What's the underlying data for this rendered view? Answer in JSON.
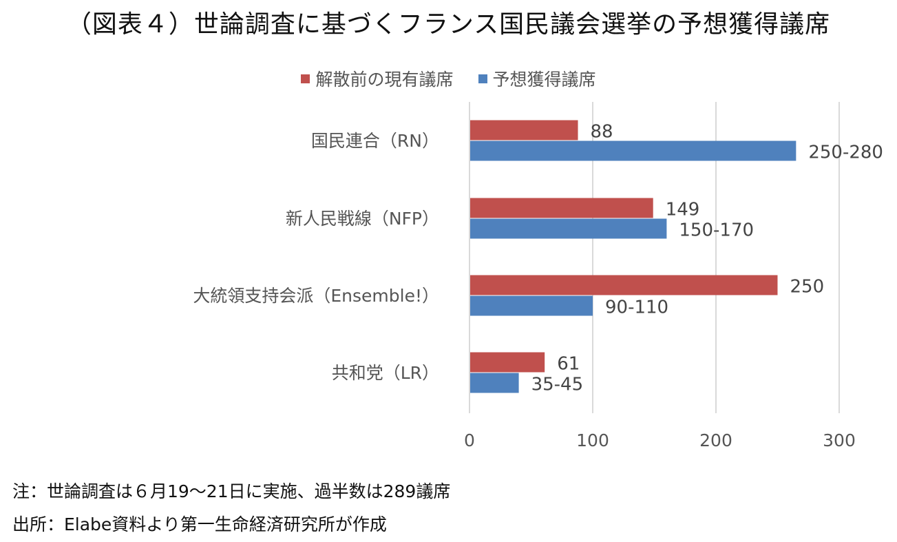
{
  "title": "（図表４）世論調査に基づくフランス国民議会選挙の予想獲得議席",
  "colors": {
    "series1": "#C0504D",
    "series2": "#4F81BD",
    "grid": "#D9D9D9"
  },
  "notes": [
    "注：世論調査は６月19～21日に実施、過半数は289議席",
    "出所：Elabe資料より第一生命経済研究所が作成"
  ],
  "chart_data": {
    "type": "bar",
    "orientation": "horizontal",
    "title": "（図表４）世論調査に基づくフランス国民議会選挙の予想獲得議席",
    "categories": [
      "国民連合（RN）",
      "新人民戦線（NFP）",
      "大統領支持会派（Ensemble!）",
      "共和党（LR）"
    ],
    "series": [
      {
        "name": "解散前の現有議席",
        "values": [
          88,
          149,
          250,
          61
        ],
        "labels": [
          "88",
          "149",
          "250",
          "61"
        ]
      },
      {
        "name": "予想獲得議席",
        "values": [
          265,
          160,
          100,
          40
        ],
        "ranges": [
          [
            250,
            280
          ],
          [
            150,
            170
          ],
          [
            90,
            110
          ],
          [
            35,
            45
          ]
        ],
        "labels": [
          "250-280",
          "150-170",
          "90-110",
          "35-45"
        ]
      }
    ],
    "xlim": [
      0,
      300
    ],
    "xticks": [
      "0",
      "100",
      "200",
      "300"
    ],
    "grid": true,
    "legend": "top"
  }
}
